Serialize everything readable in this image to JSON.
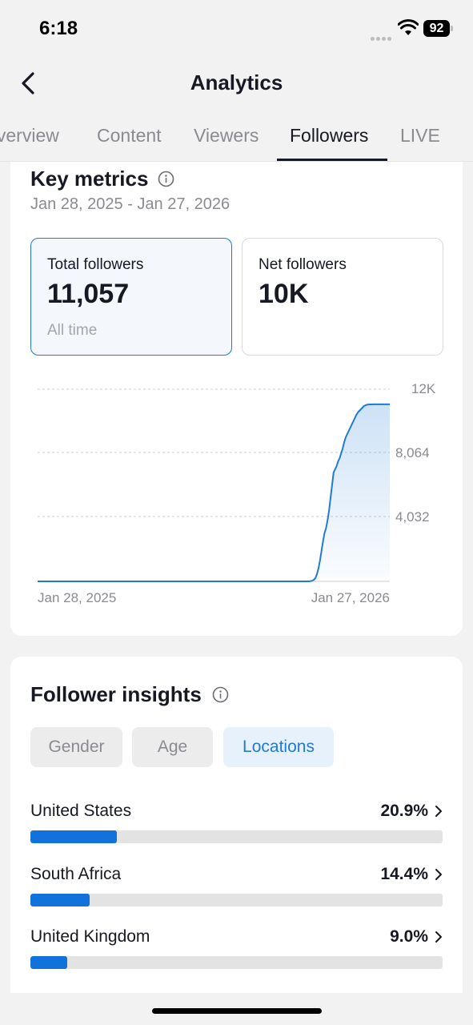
{
  "status_bar": {
    "time": "6:18",
    "battery": "92"
  },
  "header": {
    "title": "Analytics",
    "back_icon": "chevron-left-icon"
  },
  "tabs": [
    {
      "label": "Overview",
      "active": false
    },
    {
      "label": "Content",
      "active": false
    },
    {
      "label": "Viewers",
      "active": false
    },
    {
      "label": "Followers",
      "active": true
    },
    {
      "label": "LIVE",
      "active": false
    }
  ],
  "key_metrics": {
    "title": "Key metrics",
    "date_range": "Jan 28, 2025 - Jan 27, 2026",
    "total_followers": {
      "label": "Total followers",
      "value": "11,057",
      "sub": "All time"
    },
    "net_followers": {
      "label": "Net followers",
      "value": "10K"
    }
  },
  "chart_data": {
    "type": "area",
    "title": "",
    "xlabel": "",
    "ylabel": "",
    "y_tick_labels": [
      "12K",
      "8,064",
      "4,032"
    ],
    "x_tick_labels": [
      "Jan 28, 2025",
      "Jan 27, 2026"
    ],
    "ylim": [
      0,
      12000
    ],
    "grid": true,
    "color": "#1f7ad6",
    "series": [
      {
        "x": [
          0,
          320,
          350,
          358,
          362,
          364,
          366,
          368,
          370,
          372,
          374,
          376,
          378,
          380,
          382,
          384,
          386,
          388,
          390,
          392,
          394,
          396,
          398,
          400,
          402,
          404,
          406,
          408,
          410,
          412,
          414,
          416,
          418,
          420,
          422,
          424,
          426,
          428,
          430,
          432,
          434,
          436,
          438,
          440,
          442,
          444,
          446,
          448,
          450,
          452,
          454,
          456,
          458,
          460,
          462,
          464
        ],
        "y": [
          0,
          0,
          0,
          0,
          40,
          100,
          200,
          450,
          800,
          1300,
          1900,
          2500,
          3000,
          3300,
          3800,
          4400,
          5200,
          6000,
          6800,
          7000,
          7200,
          7500,
          7700,
          8000,
          8300,
          8700,
          9000,
          9200,
          9400,
          9600,
          9800,
          10000,
          10200,
          10400,
          10550,
          10650,
          10750,
          10850,
          10950,
          11000,
          11030,
          11045,
          11050,
          11052,
          11054,
          11055,
          11056,
          11056,
          11057,
          11057,
          11057,
          11057,
          11057,
          11057,
          11057,
          11057
        ]
      }
    ]
  },
  "follower_insights": {
    "title": "Follower insights",
    "filters": [
      {
        "label": "Gender",
        "active": false
      },
      {
        "label": "Age",
        "active": false
      },
      {
        "label": "Locations",
        "active": true
      }
    ],
    "locations": [
      {
        "name": "United States",
        "pct_label": "20.9%",
        "pct": 20.9
      },
      {
        "name": "South Africa",
        "pct_label": "14.4%",
        "pct": 14.4
      },
      {
        "name": "United Kingdom",
        "pct_label": "9.0%",
        "pct": 9.0
      }
    ]
  },
  "colors": {
    "accent": "#1f7ad6",
    "bar_fill": "#1172dc",
    "bar_track": "#e3e3e3"
  }
}
